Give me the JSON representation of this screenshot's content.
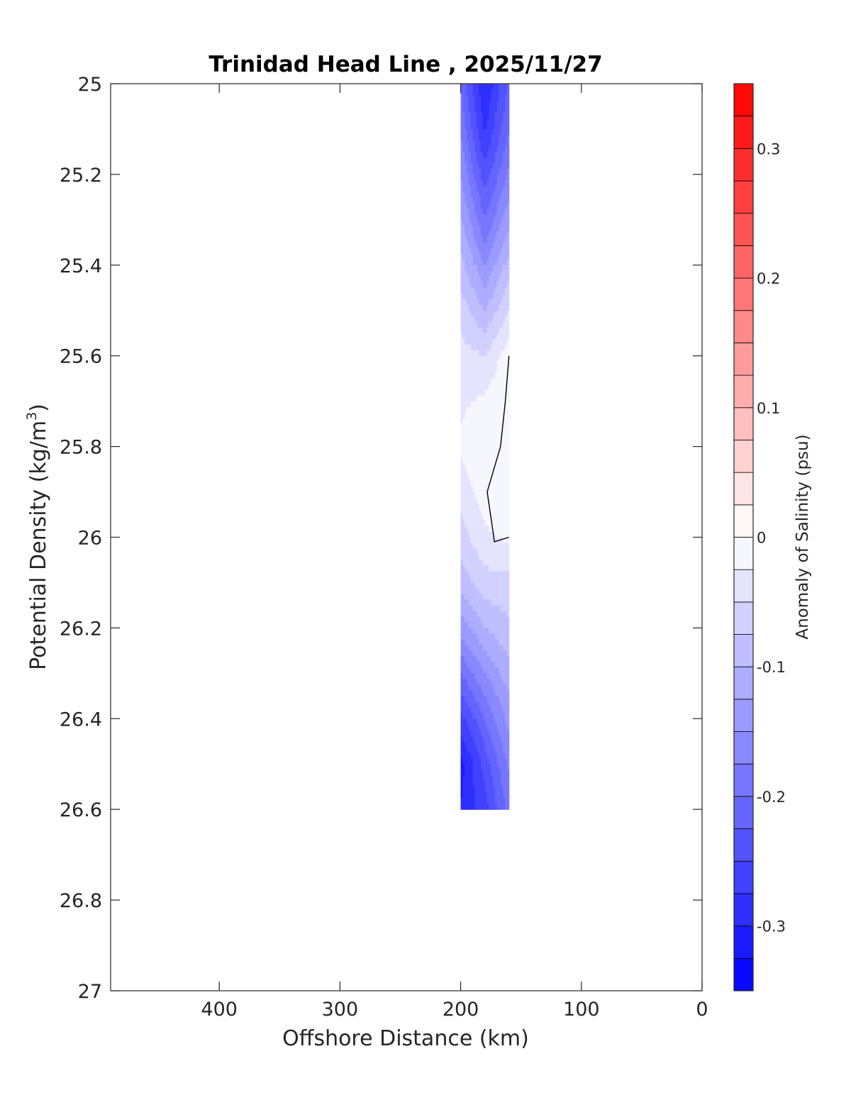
{
  "chart_data": {
    "type": "heatmap",
    "title": "Trinidad Head Line , 2025/11/27",
    "xlabel": "Offshore Distance (km)",
    "ylabel": "Potential Density (kg/m3)",
    "ylabel_parts": {
      "main": "Potential Density (kg/m",
      "sup": "3",
      "end": ")"
    },
    "xlim": [
      490,
      0
    ],
    "x_reversed": true,
    "ylim": [
      25,
      27
    ],
    "y_reversed": true,
    "xticks": [
      400,
      300,
      200,
      100,
      0
    ],
    "xtick_labels": [
      "400",
      "300",
      "200",
      "100",
      "0"
    ],
    "yticks": [
      25,
      25.2,
      25.4,
      25.6,
      25.8,
      26,
      26.2,
      26.4,
      26.6,
      26.8,
      27
    ],
    "ytick_labels": [
      "25",
      "25.2",
      "25.4",
      "25.6",
      "25.8",
      "26",
      "26.2",
      "26.4",
      "26.6",
      "26.8",
      "27"
    ],
    "grid": false,
    "x": [
      200,
      180,
      160
    ],
    "y": [
      25.0,
      25.1,
      25.2,
      25.3,
      25.4,
      25.5,
      25.6,
      25.7,
      25.8,
      25.9,
      26.0,
      26.1,
      26.2,
      26.3,
      26.4,
      26.5,
      26.6
    ],
    "z": [
      [
        -0.2,
        -0.3,
        -0.22
      ],
      [
        -0.18,
        -0.28,
        -0.2
      ],
      [
        -0.15,
        -0.24,
        -0.17
      ],
      [
        -0.12,
        -0.2,
        -0.13
      ],
      [
        -0.09,
        -0.15,
        -0.09
      ],
      [
        -0.06,
        -0.1,
        -0.05
      ],
      [
        -0.04,
        -0.05,
        -0.01
      ],
      [
        -0.03,
        -0.02,
        0.0
      ],
      [
        -0.02,
        0.0,
        0.0
      ],
      [
        -0.04,
        -0.01,
        0.0
      ],
      [
        -0.06,
        -0.03,
        -0.02
      ],
      [
        -0.09,
        -0.06,
        -0.06
      ],
      [
        -0.14,
        -0.1,
        -0.08
      ],
      [
        -0.2,
        -0.15,
        -0.11
      ],
      [
        -0.26,
        -0.2,
        -0.14
      ],
      [
        -0.31,
        -0.24,
        -0.17
      ],
      [
        -0.3,
        -0.26,
        -0.19
      ]
    ],
    "contour_zero_line": [
      {
        "x": 160,
        "y": 25.6
      },
      {
        "x": 163,
        "y": 25.7
      },
      {
        "x": 167,
        "y": 25.8
      },
      {
        "x": 178,
        "y": 25.9
      },
      {
        "x": 172,
        "y": 26.01
      },
      {
        "x": 160,
        "y": 26.0
      }
    ],
    "colorbar": {
      "label": "Anomaly of Salinity (psu)",
      "min": -0.35,
      "max": 0.35,
      "step": 0.025,
      "ticks": [
        0.3,
        0.2,
        0.1,
        0,
        -0.1,
        -0.2,
        -0.3
      ],
      "tick_labels": [
        "0.3",
        "0.2",
        "0.1",
        "0",
        "-0.1",
        "-0.2",
        "-0.3"
      ],
      "colors": {
        "negative": "#0000ff",
        "zero": "#ffffff",
        "positive": "#ff0000"
      }
    }
  }
}
